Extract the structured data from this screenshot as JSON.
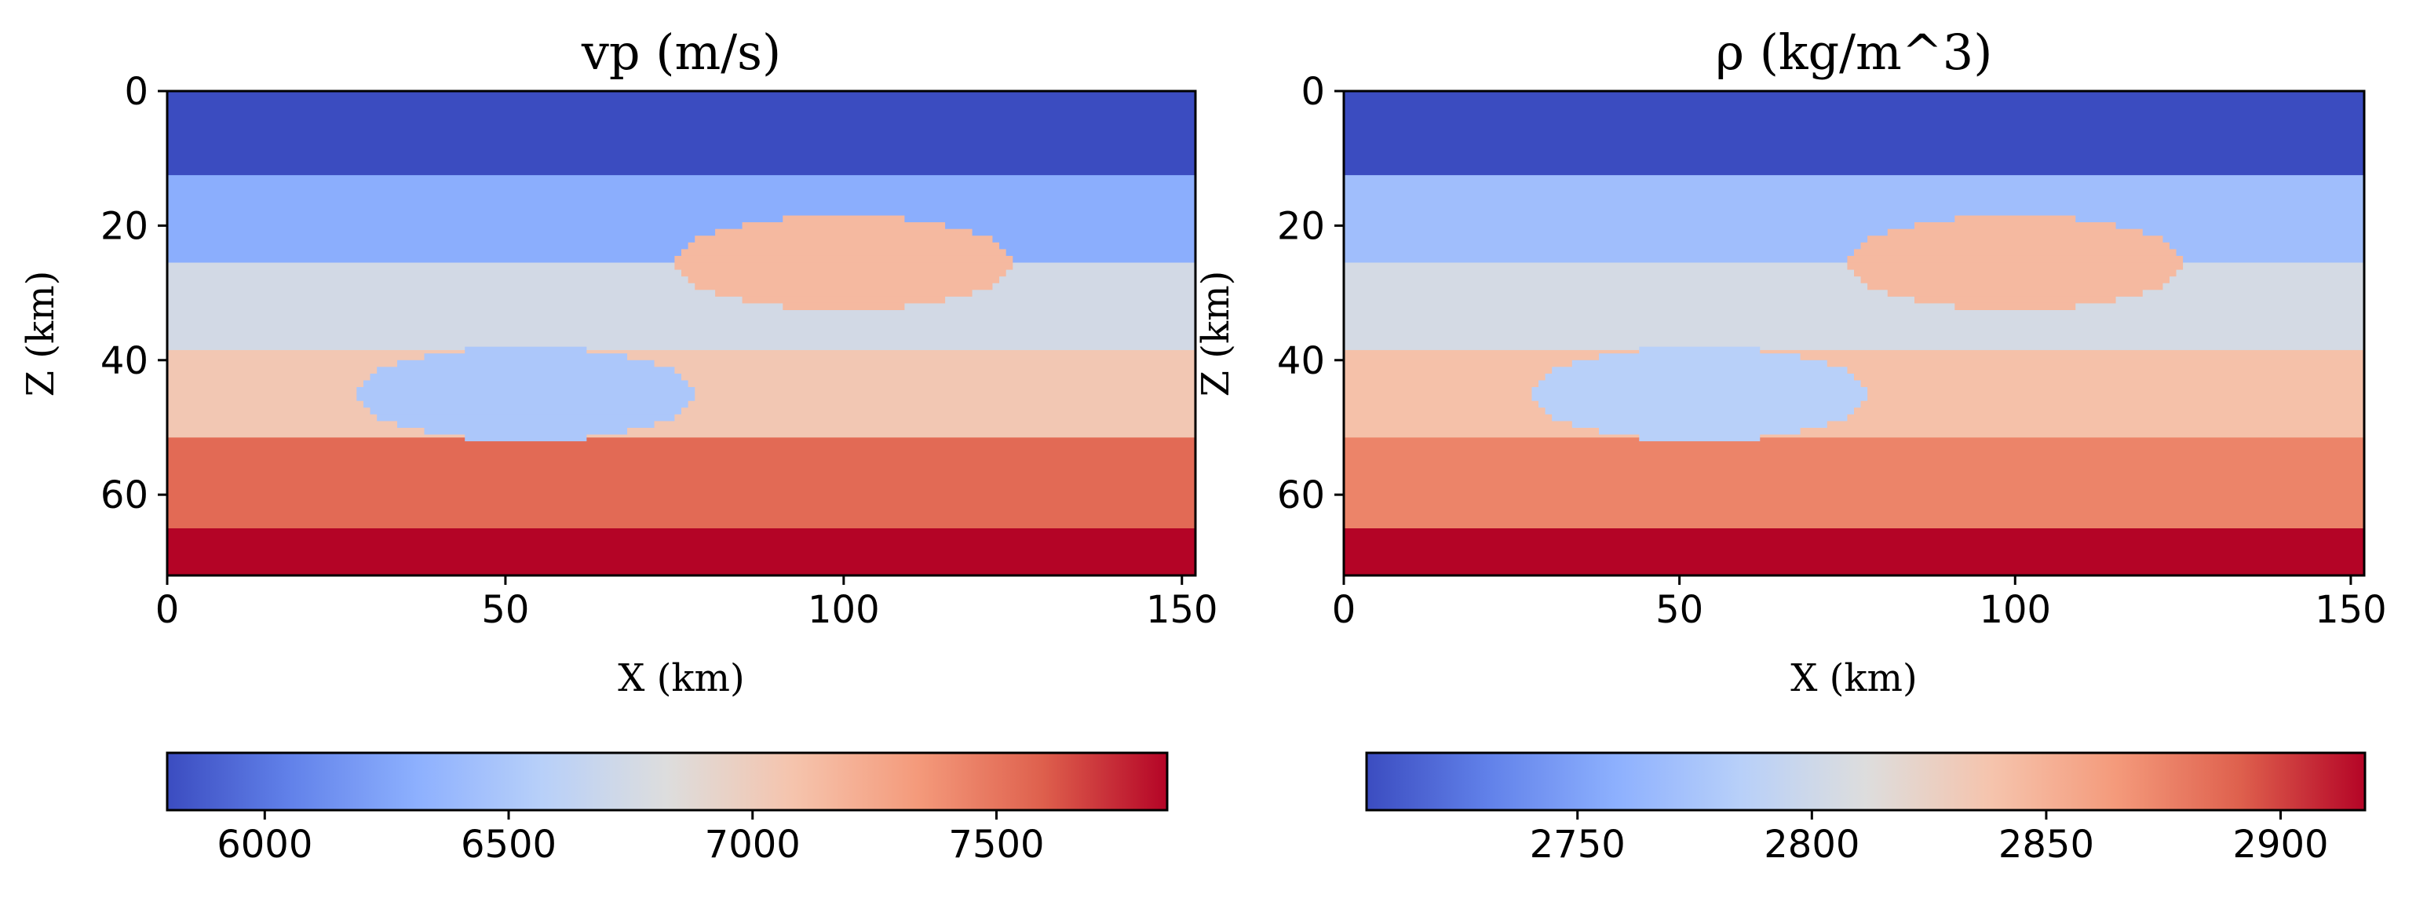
{
  "chart_data": [
    {
      "type": "heatmap",
      "title": "vp (m/s)",
      "xlabel": "X (km)",
      "ylabel": "Z (km)",
      "xlim": [
        0,
        152
      ],
      "ylim": [
        72,
        0
      ],
      "x_ticks": [
        0,
        50,
        100,
        150
      ],
      "y_ticks": [
        0,
        20,
        40,
        60
      ],
      "layers": [
        {
          "z_top": 0,
          "z_bottom": 12.5,
          "value": 5800
        },
        {
          "z_top": 12.5,
          "z_bottom": 25.5,
          "value": 6300
        },
        {
          "z_top": 25.5,
          "z_bottom": 38.5,
          "value": 6750
        },
        {
          "z_top": 38.5,
          "z_bottom": 51.5,
          "value": 7050
        },
        {
          "z_top": 51.5,
          "z_bottom": 65,
          "value": 7550
        },
        {
          "z_top": 65,
          "z_bottom": 72,
          "value": 7850
        }
      ],
      "anomalies": [
        {
          "x_center": 100,
          "z_center": 25.5,
          "x_radius": 25,
          "z_radius": 7,
          "value": 7150
        },
        {
          "x_center": 53,
          "z_center": 45,
          "x_radius": 25,
          "z_radius": 7,
          "value": 6500
        }
      ],
      "colorbar": {
        "colormap": "coolwarm",
        "vmin": 5800,
        "vmax": 7850,
        "ticks": [
          6000,
          6500,
          7000,
          7500
        ],
        "orientation": "horizontal"
      }
    },
    {
      "type": "heatmap",
      "title": "ρ (kg/m^3)",
      "xlabel": "X (km)",
      "ylabel": "Z (km)",
      "xlim": [
        0,
        152
      ],
      "ylim": [
        72,
        0
      ],
      "x_ticks": [
        0,
        50,
        100,
        150
      ],
      "y_ticks": [
        0,
        20,
        40,
        60
      ],
      "layers": [
        {
          "z_top": 0,
          "z_bottom": 12.5,
          "value": 2705
        },
        {
          "z_top": 12.5,
          "z_bottom": 25.5,
          "value": 2770
        },
        {
          "z_top": 25.5,
          "z_bottom": 38.5,
          "value": 2805
        },
        {
          "z_top": 38.5,
          "z_bottom": 51.5,
          "value": 2840
        },
        {
          "z_top": 51.5,
          "z_bottom": 65,
          "value": 2875
        },
        {
          "z_top": 65,
          "z_bottom": 72,
          "value": 2918
        }
      ],
      "anomalies": [
        {
          "x_center": 100,
          "z_center": 25.5,
          "x_radius": 25,
          "z_radius": 7,
          "value": 2845
        },
        {
          "x_center": 53,
          "z_center": 45,
          "x_radius": 25,
          "z_radius": 7,
          "value": 2785
        }
      ],
      "colorbar": {
        "colormap": "coolwarm",
        "vmin": 2705,
        "vmax": 2918,
        "ticks": [
          2750,
          2800,
          2850,
          2900
        ],
        "orientation": "horizontal"
      }
    }
  ]
}
